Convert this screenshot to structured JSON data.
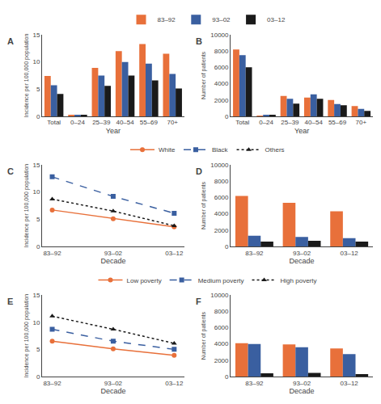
{
  "chart_data": [
    {
      "type": "bar",
      "title": "A",
      "categories": [
        "Total",
        "0–24",
        "25–39",
        "40–54",
        "55–69",
        "70+"
      ],
      "series": [
        {
          "name": "83–92",
          "color": "#E8703A",
          "values": [
            7.4,
            0.2,
            8.9,
            12.0,
            13.3,
            11.5
          ]
        },
        {
          "name": "93–02",
          "color": "#3A5FA0",
          "values": [
            5.7,
            0.15,
            7.5,
            10.0,
            9.7,
            7.8
          ]
        },
        {
          "name": "03–12",
          "color": "#1A1A1A",
          "values": [
            4.1,
            0.25,
            5.6,
            7.5,
            6.6,
            5.1
          ]
        }
      ],
      "xlabel": "Year",
      "ylabel": "Incidence per 100,000 population",
      "ylim": [
        0,
        15
      ],
      "yticks": [
        0,
        5,
        10,
        15
      ],
      "grid": false,
      "legend": "top"
    },
    {
      "type": "bar",
      "title": "B",
      "categories": [
        "Total",
        "0–24",
        "25–39",
        "40–54",
        "55–69",
        "70+"
      ],
      "series": [
        {
          "name": "83–92",
          "color": "#E8703A",
          "values": [
            8200,
            60,
            2500,
            2300,
            2000,
            1250
          ]
        },
        {
          "name": "93–02",
          "color": "#3A5FA0",
          "values": [
            7500,
            100,
            2150,
            2700,
            1500,
            900
          ]
        },
        {
          "name": "03–12",
          "color": "#1A1A1A",
          "values": [
            6000,
            130,
            1550,
            2150,
            1350,
            650
          ]
        }
      ],
      "xlabel": "Year",
      "ylabel": "Number of patients",
      "ylim": [
        0,
        10000
      ],
      "yticks": [
        0,
        2000,
        4000,
        6000,
        8000,
        10000
      ],
      "grid": false,
      "legend": "top"
    },
    {
      "type": "line",
      "title": "C",
      "categories": [
        "83–92",
        "93–02",
        "03–12"
      ],
      "series": [
        {
          "name": "White",
          "color": "#E8703A",
          "marker": "circle",
          "line_style": "solid",
          "values": [
            6.7,
            5.1,
            3.6
          ]
        },
        {
          "name": "Black",
          "color": "#3A5FA0",
          "marker": "square",
          "line_style": "dash",
          "values": [
            12.8,
            9.2,
            6.1
          ]
        },
        {
          "name": "Others",
          "color": "#1A1A1A",
          "marker": "triangle-up",
          "line_style": "dot",
          "values": [
            8.7,
            6.5,
            3.8
          ]
        }
      ],
      "xlabel": "Decade",
      "ylabel": "Incidence per 100,000 population",
      "ylim": [
        0,
        15
      ],
      "yticks": [
        0,
        5,
        10,
        15
      ],
      "grid": false,
      "legend": "top"
    },
    {
      "type": "bar",
      "title": "D",
      "categories": [
        "83–92",
        "93–02",
        "03–12"
      ],
      "series": [
        {
          "name": "White",
          "color": "#E8703A",
          "values": [
            6200,
            5350,
            4300
          ]
        },
        {
          "name": "Black",
          "color": "#3A5FA0",
          "values": [
            1300,
            1150,
            1000
          ]
        },
        {
          "name": "Others",
          "color": "#1A1A1A",
          "values": [
            600,
            700,
            600
          ]
        }
      ],
      "xlabel": "Decade",
      "ylabel": "Number of patients",
      "ylim": [
        0,
        10000
      ],
      "yticks": [
        0,
        2000,
        4000,
        6000,
        8000,
        10000
      ],
      "grid": false,
      "legend": "top"
    },
    {
      "type": "line",
      "title": "E",
      "categories": [
        "83–92",
        "93–02",
        "03–12"
      ],
      "series": [
        {
          "name": "Low poverty",
          "color": "#E8703A",
          "marker": "circle",
          "line_style": "solid",
          "values": [
            6.5,
            5.1,
            3.9
          ]
        },
        {
          "name": "Medium poverty",
          "color": "#3A5FA0",
          "marker": "square",
          "line_style": "dash",
          "values": [
            8.7,
            6.5,
            5.0
          ]
        },
        {
          "name": "High poverty",
          "color": "#1A1A1A",
          "marker": "triangle-up",
          "line_style": "dot",
          "values": [
            11.1,
            8.7,
            6.1
          ]
        }
      ],
      "xlabel": "Decade",
      "ylabel": "Incidence per 100,000 population",
      "ylim": [
        0,
        15
      ],
      "yticks": [
        0,
        5,
        10,
        15
      ],
      "grid": false,
      "legend": "top"
    },
    {
      "type": "bar",
      "title": "F",
      "categories": [
        "83–92",
        "93–02",
        "03–12"
      ],
      "series": [
        {
          "name": "Low poverty",
          "color": "#E8703A",
          "values": [
            4100,
            3950,
            3450
          ]
        },
        {
          "name": "Medium poverty",
          "color": "#3A5FA0",
          "values": [
            4000,
            3600,
            2750
          ]
        },
        {
          "name": "High poverty",
          "color": "#1A1A1A",
          "values": [
            400,
            450,
            300
          ]
        }
      ],
      "xlabel": "Decade",
      "ylabel": "Number of patients",
      "ylim": [
        0,
        10000
      ],
      "yticks": [
        0,
        2000,
        4000,
        6000,
        8000,
        10000
      ],
      "grid": false,
      "legend": "top"
    }
  ]
}
